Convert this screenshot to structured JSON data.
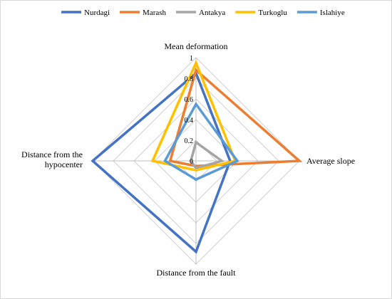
{
  "chart_data": {
    "type": "radar",
    "axes": [
      "Mean deformation",
      "Average slope",
      "Distance from the fault",
      "Distance from the hypocenter"
    ],
    "axis_label_lines": [
      [
        "Mean deformation"
      ],
      [
        "Average slope"
      ],
      [
        "Distance from the fault"
      ],
      [
        "Distance from the",
        "hypocenter"
      ]
    ],
    "r_ticks": [
      0,
      0.2,
      0.4,
      0.6,
      0.8,
      1
    ],
    "r_tick_labels": [
      "0",
      "0.2",
      "0.4",
      "0.6",
      "0.8",
      "1"
    ],
    "r_range": [
      0,
      1
    ],
    "grid": true,
    "legend_position": "top",
    "series": [
      {
        "name": "Nurdagi",
        "color": "#4472C4",
        "values": [
          0.85,
          0.33,
          0.88,
          1.0
        ]
      },
      {
        "name": "Marash",
        "color": "#ED7D31",
        "values": [
          0.88,
          1.0,
          0.05,
          0.25
        ]
      },
      {
        "name": "Antakya",
        "color": "#A5A5A5",
        "values": [
          0.18,
          0.25,
          0.07,
          0.05
        ]
      },
      {
        "name": "Turkoglu",
        "color": "#FFC000",
        "values": [
          0.95,
          0.38,
          0.09,
          0.42
        ]
      },
      {
        "name": "Islahiye",
        "color": "#5B9BD5",
        "values": [
          0.55,
          0.4,
          0.18,
          0.3
        ]
      }
    ]
  }
}
